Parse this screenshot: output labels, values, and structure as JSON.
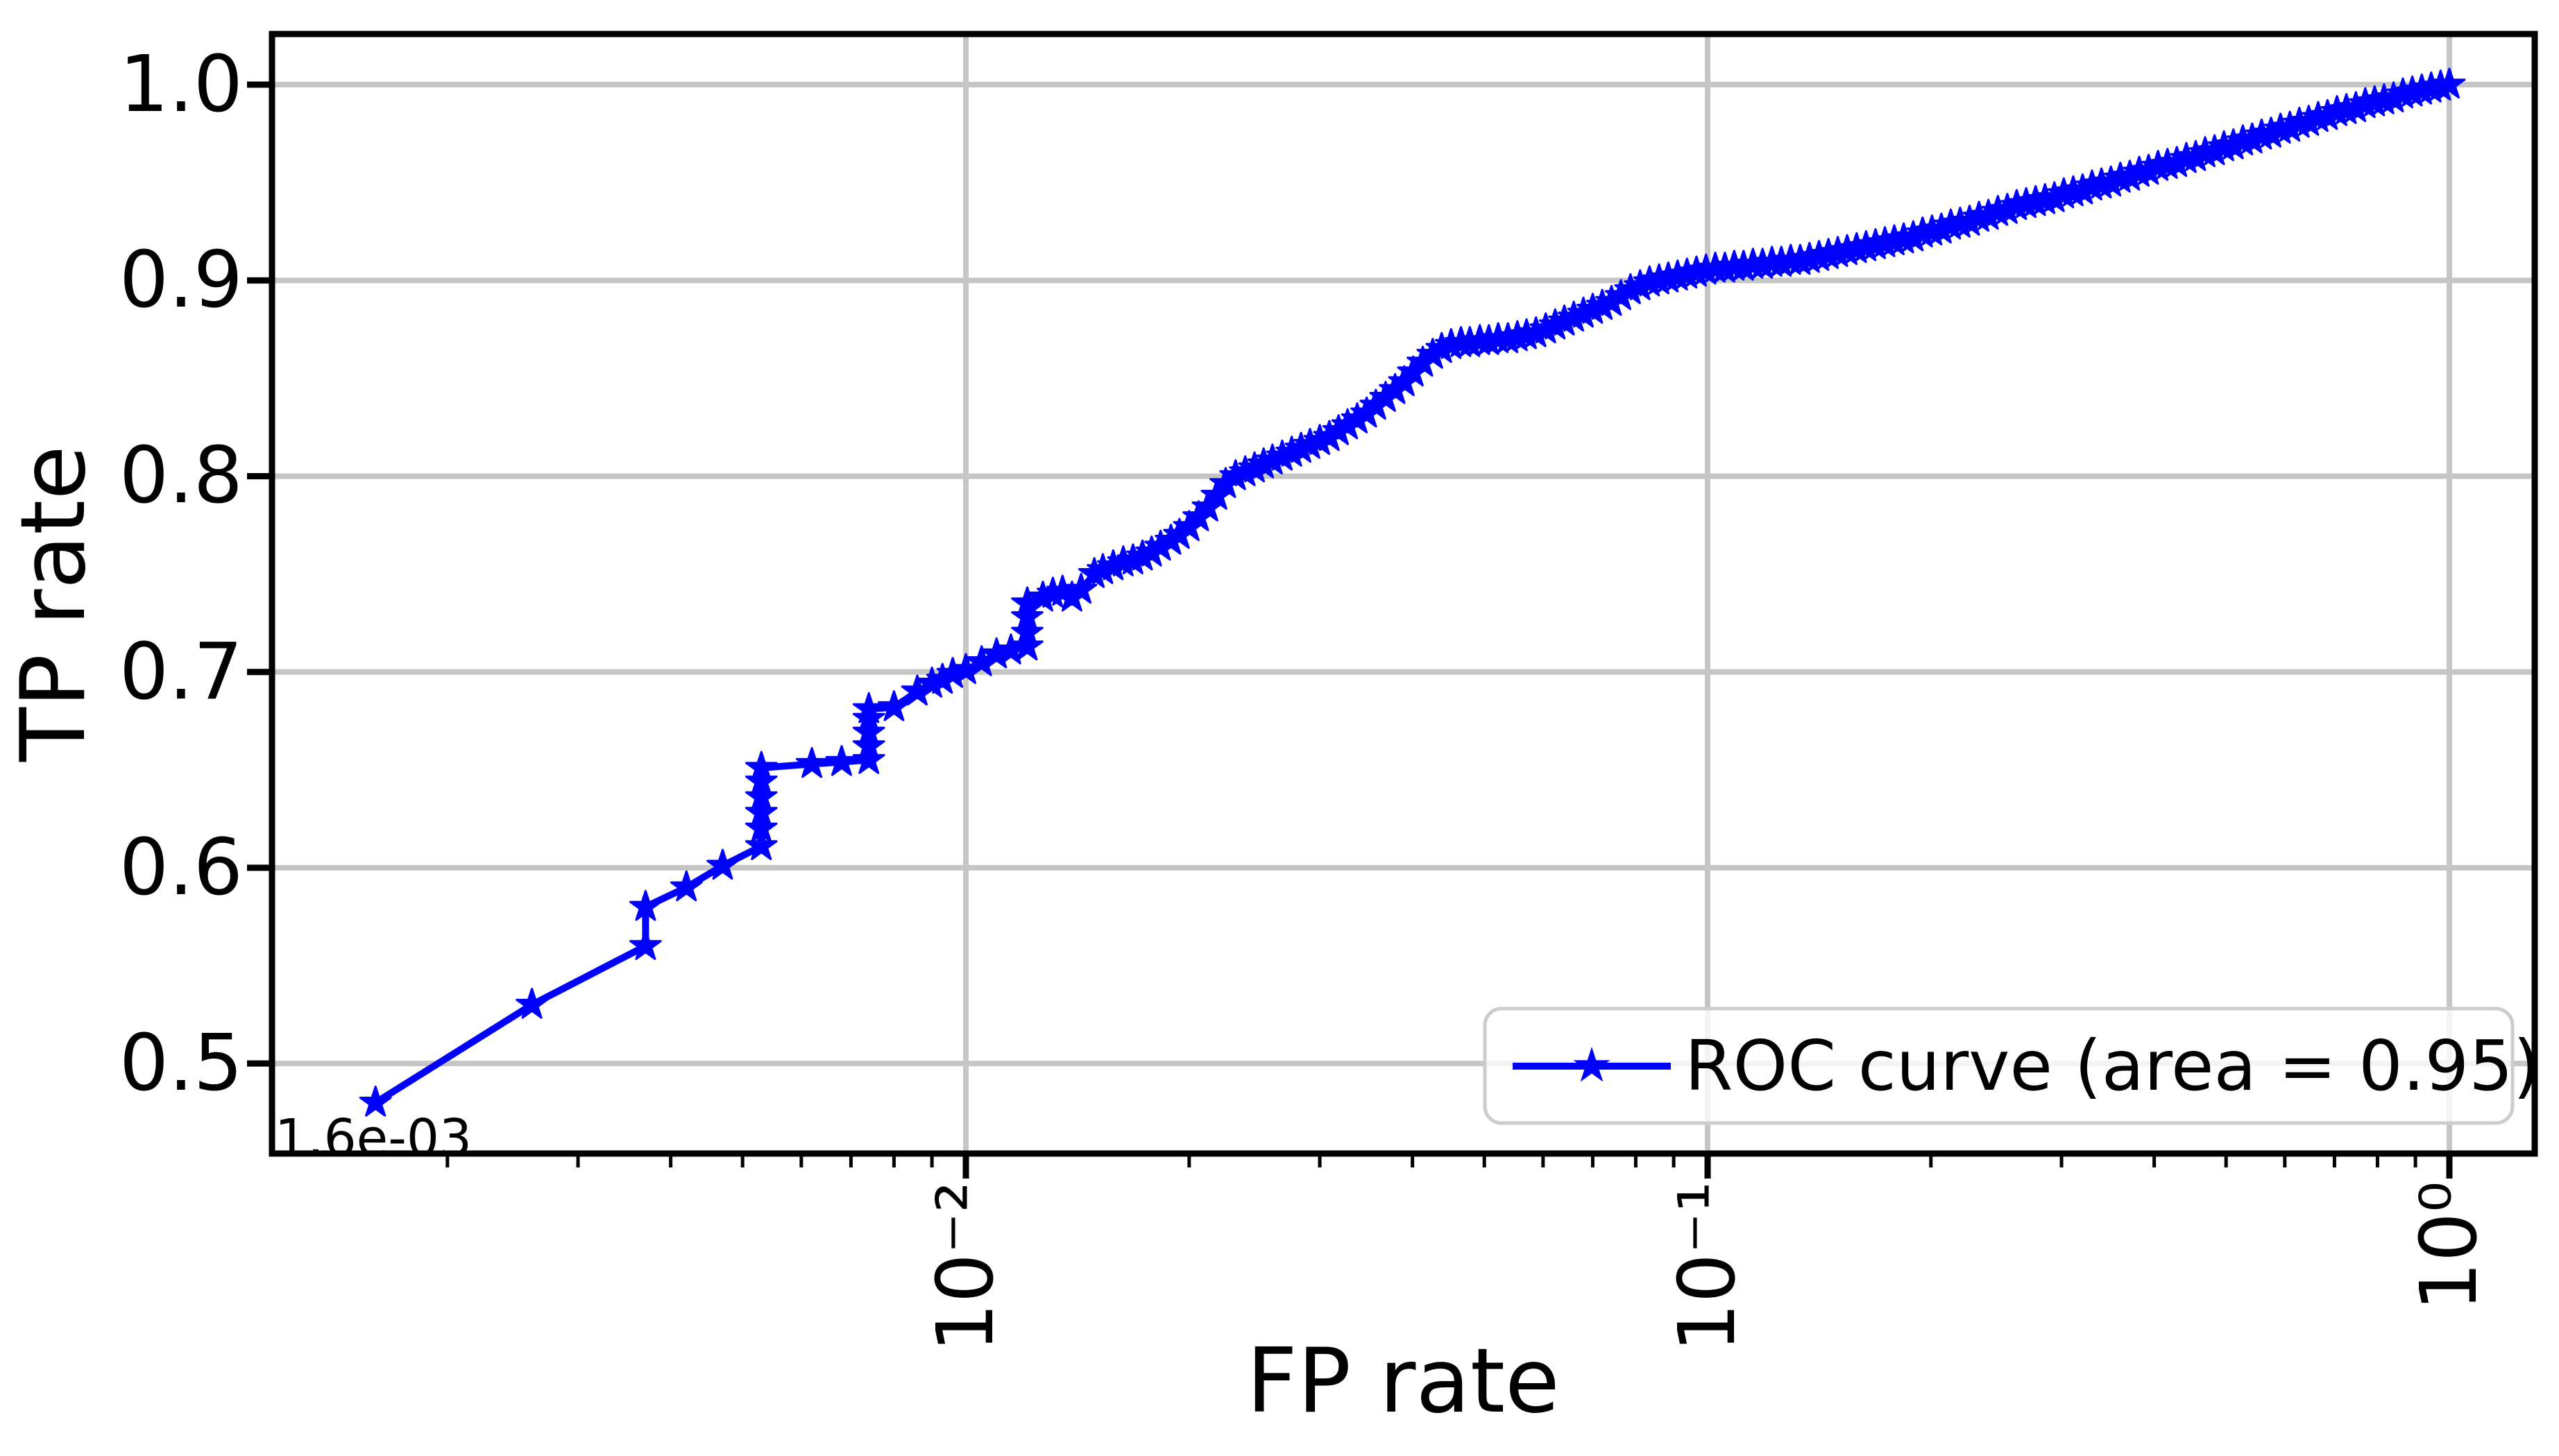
{
  "style": {
    "background": "#ffffff",
    "curve_color": "#0000ff",
    "grid_color": "#c6c6c6",
    "spine_color": "#000000",
    "legend_border_color": "#cccccc",
    "legend_background": "rgba(255,255,255,0.8)",
    "text_color": "#000000"
  },
  "chart_data": {
    "type": "line",
    "title": "",
    "xlabel": "FP rate",
    "ylabel": "TP rate",
    "x_scale": "log",
    "y_scale": "linear",
    "xlim": [
      0.00116,
      1.3
    ],
    "ylim": [
      0.454,
      1.026
    ],
    "grid": true,
    "legend_position": "lower right",
    "x_tick_values": [
      0.01,
      0.1,
      1
    ],
    "x_tick_labels": [
      "10⁻²",
      "10⁻¹",
      "10⁰"
    ],
    "x_minor_tick_values": [
      0.002,
      0.003,
      0.004,
      0.005,
      0.006,
      0.007,
      0.008,
      0.009,
      0.02,
      0.03,
      0.04,
      0.05,
      0.06,
      0.07,
      0.08,
      0.09,
      0.2,
      0.3,
      0.4,
      0.5,
      0.6,
      0.7,
      0.8,
      0.9
    ],
    "y_tick_values": [
      0.5,
      0.6,
      0.7,
      0.8,
      0.9,
      1.0
    ],
    "y_tick_labels": [
      "0.5",
      "0.6",
      "0.7",
      "0.8",
      "0.9",
      "1.0"
    ],
    "annotations": [
      {
        "text": "1.6e-03",
        "x": 0.0016,
        "y": 0.48
      }
    ],
    "series": [
      {
        "name": "ROC curve (area = 0.95)",
        "color": "#0000ff",
        "marker": "star",
        "points": [
          [
            0.0016,
            0.48
          ],
          [
            0.0026,
            0.53
          ],
          [
            0.0037,
            0.56
          ],
          [
            0.0037,
            0.58
          ],
          [
            0.0042,
            0.59
          ],
          [
            0.0047,
            0.601
          ],
          [
            0.0053,
            0.611
          ],
          [
            0.0053,
            0.62
          ],
          [
            0.0053,
            0.628
          ],
          [
            0.0053,
            0.636
          ],
          [
            0.0053,
            0.644
          ],
          [
            0.0053,
            0.651
          ],
          [
            0.0062,
            0.653
          ],
          [
            0.0068,
            0.654
          ],
          [
            0.0074,
            0.655
          ],
          [
            0.0074,
            0.662
          ],
          [
            0.0074,
            0.669
          ],
          [
            0.0074,
            0.676
          ],
          [
            0.0074,
            0.681
          ],
          [
            0.008,
            0.682
          ],
          [
            0.0086,
            0.69
          ],
          [
            0.009,
            0.694
          ],
          [
            0.0093,
            0.696
          ],
          [
            0.0096,
            0.699
          ],
          [
            0.01,
            0.701
          ],
          [
            0.0105,
            0.705
          ],
          [
            0.011,
            0.709
          ],
          [
            0.0115,
            0.711
          ],
          [
            0.0121,
            0.713
          ],
          [
            0.0121,
            0.72
          ],
          [
            0.0121,
            0.728
          ],
          [
            0.0121,
            0.735
          ],
          [
            0.0127,
            0.738
          ],
          [
            0.0131,
            0.74
          ],
          [
            0.0135,
            0.741
          ],
          [
            0.0139,
            0.738
          ],
          [
            0.0143,
            0.742
          ],
          [
            0.0149,
            0.75
          ],
          [
            0.0153,
            0.752
          ],
          [
            0.0158,
            0.754
          ],
          [
            0.0163,
            0.756
          ],
          [
            0.0168,
            0.757
          ],
          [
            0.0173,
            0.759
          ],
          [
            0.0178,
            0.761
          ],
          [
            0.0183,
            0.764
          ],
          [
            0.0189,
            0.767
          ],
          [
            0.0194,
            0.77
          ],
          [
            0.02,
            0.774
          ],
          [
            0.0206,
            0.779
          ],
          [
            0.0212,
            0.784
          ],
          [
            0.0218,
            0.79
          ],
          [
            0.0224,
            0.796
          ],
          [
            0.0231,
            0.8
          ],
          [
            0.0238,
            0.802
          ],
          [
            0.0245,
            0.804
          ],
          [
            0.0252,
            0.806
          ],
          [
            0.0259,
            0.808
          ],
          [
            0.0267,
            0.81
          ],
          [
            0.0275,
            0.812
          ],
          [
            0.0283,
            0.814
          ],
          [
            0.0291,
            0.816
          ],
          [
            0.03,
            0.818
          ],
          [
            0.0309,
            0.82
          ],
          [
            0.0318,
            0.823
          ],
          [
            0.0327,
            0.826
          ],
          [
            0.0337,
            0.829
          ],
          [
            0.0347,
            0.832
          ],
          [
            0.0357,
            0.836
          ],
          [
            0.0368,
            0.84
          ],
          [
            0.0379,
            0.844
          ],
          [
            0.039,
            0.848
          ],
          [
            0.0401,
            0.853
          ],
          [
            0.0413,
            0.858
          ],
          [
            0.0426,
            0.862
          ],
          [
            0.0438,
            0.865
          ],
          [
            0.0451,
            0.867
          ],
          [
            0.0465,
            0.868
          ],
          [
            0.0478,
            0.868
          ],
          [
            0.0493,
            0.869
          ],
          [
            0.0507,
            0.869
          ],
          [
            0.0522,
            0.87
          ],
          [
            0.0538,
            0.87
          ],
          [
            0.0554,
            0.871
          ],
          [
            0.057,
            0.872
          ],
          [
            0.0587,
            0.873
          ],
          [
            0.0605,
            0.875
          ],
          [
            0.0623,
            0.877
          ],
          [
            0.0641,
            0.879
          ],
          [
            0.066,
            0.881
          ],
          [
            0.068,
            0.883
          ],
          [
            0.07,
            0.885
          ],
          [
            0.0721,
            0.887
          ],
          [
            0.0742,
            0.889
          ],
          [
            0.0764,
            0.892
          ],
          [
            0.0787,
            0.895
          ],
          [
            0.0811,
            0.897
          ],
          [
            0.0835,
            0.899
          ],
          [
            0.086,
            0.9
          ],
          [
            0.0885,
            0.901
          ],
          [
            0.0911,
            0.902
          ],
          [
            0.0938,
            0.903
          ],
          [
            0.0966,
            0.904
          ],
          [
            0.0995,
            0.905
          ],
          [
            0.1024,
            0.906
          ],
          [
            0.1055,
            0.906
          ],
          [
            0.1086,
            0.907
          ],
          [
            0.1118,
            0.907
          ],
          [
            0.1151,
            0.908
          ],
          [
            0.1186,
            0.908
          ],
          [
            0.1221,
            0.909
          ],
          [
            0.1257,
            0.909
          ],
          [
            0.1294,
            0.91
          ],
          [
            0.1333,
            0.91
          ],
          [
            0.1372,
            0.911
          ],
          [
            0.1413,
            0.912
          ],
          [
            0.1455,
            0.913
          ],
          [
            0.1498,
            0.914
          ],
          [
            0.1542,
            0.915
          ],
          [
            0.1588,
            0.916
          ],
          [
            0.1635,
            0.917
          ],
          [
            0.1684,
            0.918
          ],
          [
            0.1734,
            0.919
          ],
          [
            0.1785,
            0.92
          ],
          [
            0.1838,
            0.921
          ],
          [
            0.1893,
            0.922
          ],
          [
            0.1949,
            0.924
          ],
          [
            0.2007,
            0.925
          ],
          [
            0.2066,
            0.926
          ],
          [
            0.2127,
            0.928
          ],
          [
            0.219,
            0.929
          ],
          [
            0.2255,
            0.93
          ],
          [
            0.2322,
            0.932
          ],
          [
            0.2391,
            0.933
          ],
          [
            0.2462,
            0.935
          ],
          [
            0.2535,
            0.936
          ],
          [
            0.261,
            0.938
          ],
          [
            0.2688,
            0.939
          ],
          [
            0.2768,
            0.94
          ],
          [
            0.285,
            0.941
          ],
          [
            0.2934,
            0.942
          ],
          [
            0.3021,
            0.944
          ],
          [
            0.3111,
            0.945
          ],
          [
            0.3203,
            0.946
          ],
          [
            0.3298,
            0.948
          ],
          [
            0.3396,
            0.949
          ],
          [
            0.3497,
            0.95
          ],
          [
            0.3601,
            0.952
          ],
          [
            0.3708,
            0.953
          ],
          [
            0.3818,
            0.955
          ],
          [
            0.3931,
            0.956
          ],
          [
            0.4048,
            0.958
          ],
          [
            0.4168,
            0.959
          ],
          [
            0.4291,
            0.96
          ],
          [
            0.4419,
            0.962
          ],
          [
            0.455,
            0.963
          ],
          [
            0.4685,
            0.965
          ],
          [
            0.4824,
            0.966
          ],
          [
            0.4967,
            0.968
          ],
          [
            0.5114,
            0.969
          ],
          [
            0.5266,
            0.971
          ],
          [
            0.5422,
            0.972
          ],
          [
            0.5583,
            0.974
          ],
          [
            0.5749,
            0.975
          ],
          [
            0.592,
            0.977
          ],
          [
            0.6095,
            0.978
          ],
          [
            0.6276,
            0.98
          ],
          [
            0.6462,
            0.981
          ],
          [
            0.6654,
            0.983
          ],
          [
            0.6851,
            0.984
          ],
          [
            0.7055,
            0.986
          ],
          [
            0.7264,
            0.987
          ],
          [
            0.748,
            0.988
          ],
          [
            0.7702,
            0.99
          ],
          [
            0.793,
            0.991
          ],
          [
            0.8165,
            0.992
          ],
          [
            0.8408,
            0.993
          ],
          [
            0.8657,
            0.995
          ],
          [
            0.8914,
            0.996
          ],
          [
            0.9179,
            0.997
          ],
          [
            0.9451,
            0.998
          ],
          [
            0.9731,
            0.999
          ],
          [
            1.0,
            1.0
          ]
        ]
      }
    ]
  }
}
